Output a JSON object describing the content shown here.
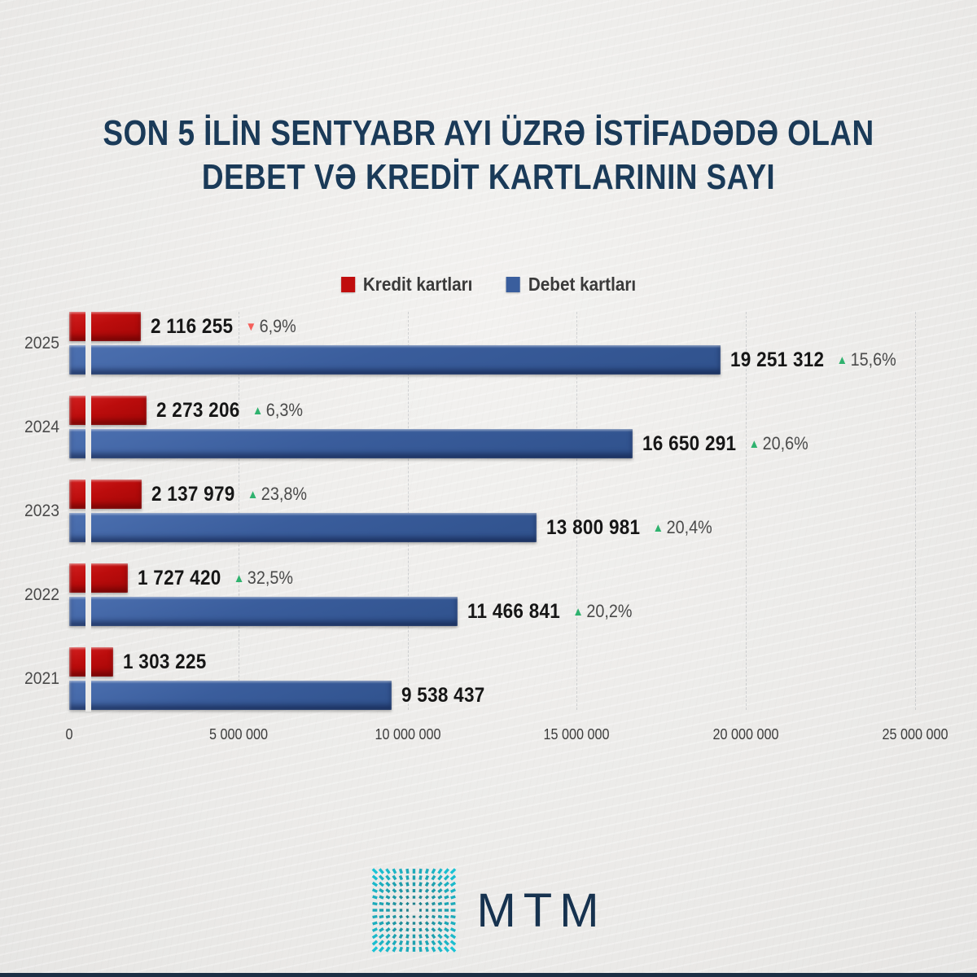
{
  "title": {
    "line1": "SON 5 İLİN SENTYABR AYI ÜZRƏ İSTİFADƏDƏ OLAN",
    "line2": "DEBET VƏ KREDİT KARTLARININ SAYI"
  },
  "legend": [
    {
      "label": "Kredit kartları",
      "color": "#c00d0d"
    },
    {
      "label": "Debet kartları",
      "color": "#3a5e9d"
    }
  ],
  "chart_data": {
    "type": "bar",
    "orientation": "horizontal",
    "title": "Son 5 ilin sentyabr ayı üzrə istifadədə olan debet və kredit kartlarının sayı",
    "categories": [
      "2025",
      "2024",
      "2023",
      "2022",
      "2021"
    ],
    "series": [
      {
        "name": "Kredit kartları",
        "color": "#c00d0d",
        "values": [
          2116255,
          2273206,
          2137979,
          1727420,
          1303225
        ],
        "labels": [
          "2 116 255",
          "2 273 206",
          "2 137 979",
          "1 727 420",
          "1 303 225"
        ],
        "changes": [
          {
            "dir": "down",
            "label": "6,9%"
          },
          {
            "dir": "up",
            "label": "6,3%"
          },
          {
            "dir": "up",
            "label": "23,8%"
          },
          {
            "dir": "up",
            "label": "32,5%"
          },
          null
        ]
      },
      {
        "name": "Debet kartları",
        "color": "#3a5e9d",
        "values": [
          19251312,
          16650291,
          13800981,
          11466841,
          9538437
        ],
        "labels": [
          "19 251 312",
          "16 650 291",
          "13 800 981",
          "11 466 841",
          "9 538 437"
        ],
        "changes": [
          {
            "dir": "up",
            "label": "15,6%"
          },
          {
            "dir": "up",
            "label": "20,6%"
          },
          {
            "dir": "up",
            "label": "20,4%"
          },
          {
            "dir": "up",
            "label": "20,2%"
          },
          null
        ]
      }
    ],
    "xlim": [
      0,
      25000000
    ],
    "x_ticks": [
      "0",
      "5 000 000",
      "10 000 000",
      "15 000 000",
      "20 000 000",
      "25 000 000"
    ],
    "grid": true,
    "legend_position": "top-center"
  },
  "footer": {
    "logo_text": "MTM"
  },
  "colors": {
    "background": "#ebeae8",
    "title": "#1a3a58",
    "kredit_red": "#c00d0d",
    "debet_blue": "#3a5e9d",
    "up_green": "#2fb26e",
    "down_red": "#f55f5a",
    "value_text": "#161616",
    "percent_text": "#4a4a4a",
    "logo_teal": "#1ba8ba",
    "logo_navy": "#16324f",
    "bottom_bar": "#1c2f44"
  }
}
